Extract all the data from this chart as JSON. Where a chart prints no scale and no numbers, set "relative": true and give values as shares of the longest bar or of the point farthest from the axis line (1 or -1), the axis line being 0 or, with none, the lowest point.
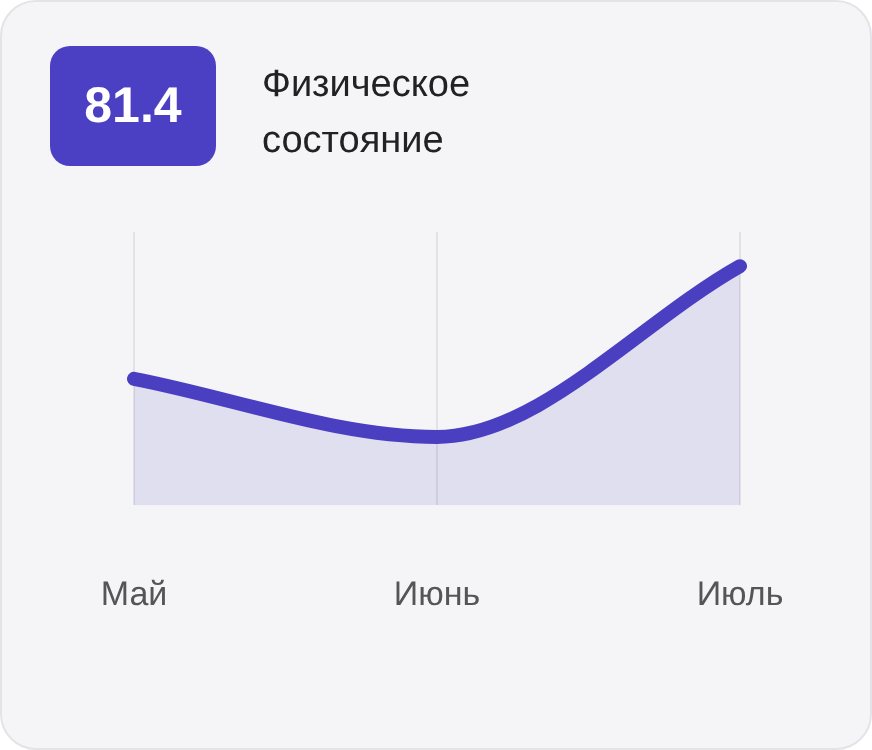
{
  "chart_data": {
    "type": "area",
    "title": "Физическое состояние",
    "annotations": [
      "81.4"
    ],
    "categories": [
      "Май",
      "Июнь",
      "Июль"
    ],
    "series": [
      {
        "color": "#4a3fc0",
        "values": [
          0.34,
          0,
          1
        ]
      }
    ],
    "relative": true,
    "grid": "x",
    "legend": false,
    "marker": "none",
    "line_style": "solid"
  }
}
